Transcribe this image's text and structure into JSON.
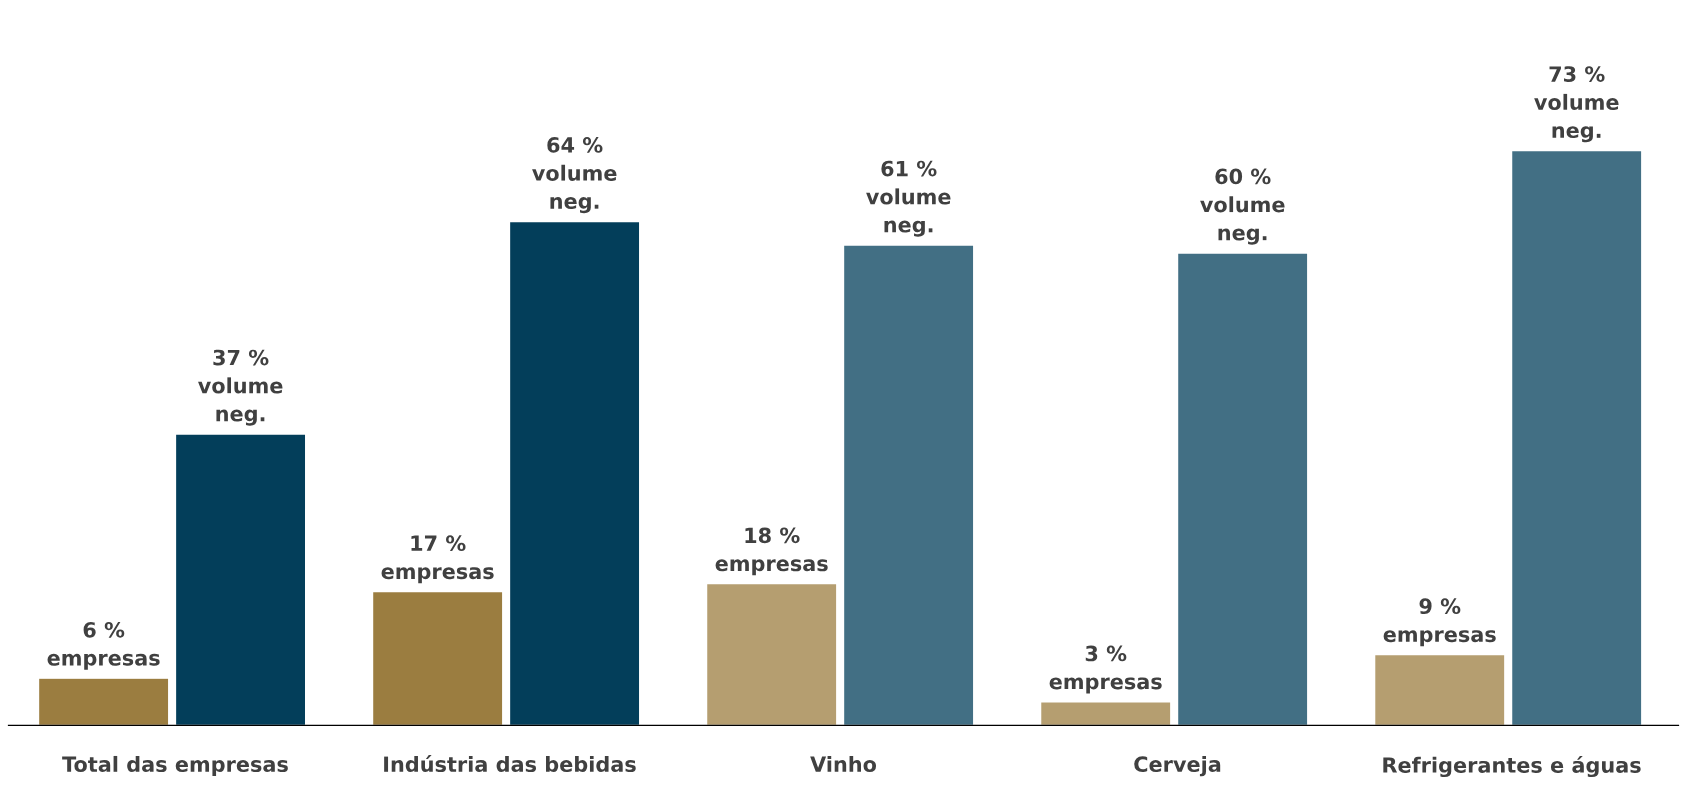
{
  "chart_data": {
    "type": "bar",
    "categories": [
      "Total das empresas",
      "Indústria das bebidas",
      "Vinho",
      "Cerveja",
      "Refrigerantes e águas"
    ],
    "series": [
      {
        "values": [
          6,
          17,
          18,
          3,
          9
        ],
        "colors": [
          "#9b7d40",
          "#9b7d40",
          "#b59e70",
          "#b59e70",
          "#b59e70"
        ],
        "value_labels": [
          "6 %\nempresas",
          "17 %\nempresas",
          "18 %\nempresas",
          "3 %\nempresas",
          "9 %\nempresas"
        ]
      },
      {
        "values": [
          37,
          64,
          61,
          60,
          73
        ],
        "colors": [
          "#033e5a",
          "#033e5a",
          "#426f84",
          "#426f84",
          "#426f84"
        ],
        "value_labels": [
          "37 %\nvolume\nneg.",
          "64 %\nvolume\nneg.",
          "61 %\nvolume\nneg.",
          "60 %\nvolume\nneg.",
          "73 %\nvolume\nneg."
        ]
      }
    ],
    "grid": false,
    "legend": false
  }
}
